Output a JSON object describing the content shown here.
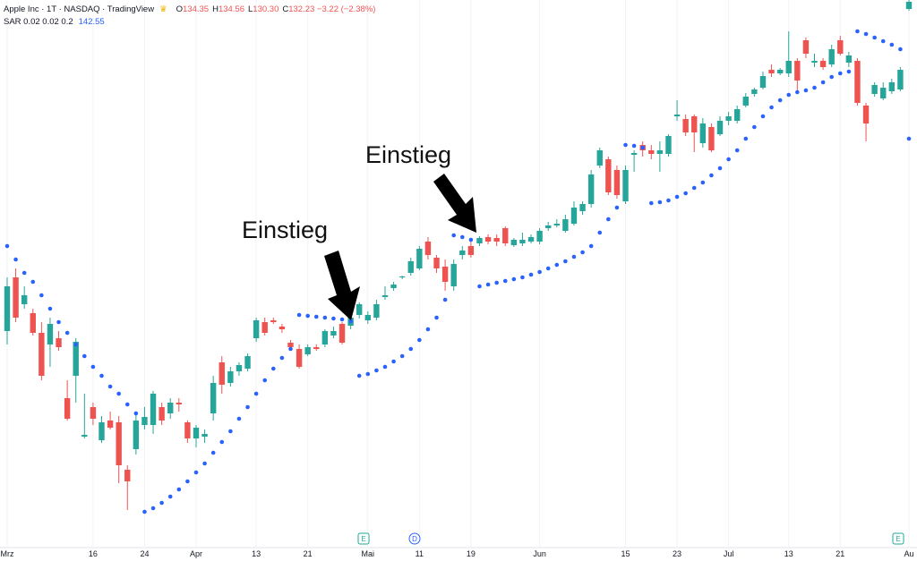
{
  "header": {
    "title": "Apple Inc · 1T · NASDAQ · TradingView",
    "ohlc": [
      {
        "key": "O",
        "value": "134.35"
      },
      {
        "key": "H",
        "value": "134.56"
      },
      {
        "key": "L",
        "value": "130.30"
      },
      {
        "key": "C",
        "value": "132.23"
      }
    ],
    "change": "−3.22 (−2.38%)",
    "indicator": "SAR 0.02 0.02 0.2",
    "indicator_value": "142.55"
  },
  "chart_data": {
    "type": "candlestick",
    "categories": [
      "Mrz",
      null,
      null,
      null,
      null,
      null,
      null,
      null,
      null,
      null,
      "16",
      null,
      null,
      null,
      null,
      null,
      "24",
      null,
      null,
      null,
      null,
      null,
      "Apr",
      null,
      null,
      null,
      null,
      null,
      null,
      "13",
      null,
      null,
      null,
      null,
      null,
      "21",
      null,
      null,
      null,
      null,
      null,
      null,
      "Mai",
      null,
      null,
      null,
      null,
      null,
      "11",
      null,
      null,
      null,
      null,
      null,
      "19",
      null,
      null,
      null,
      null,
      null,
      null,
      null,
      "Jun",
      null,
      null,
      null,
      null,
      null,
      null,
      null,
      null,
      null,
      "15",
      null,
      null,
      null,
      null,
      null,
      "23",
      null,
      null,
      null,
      null,
      null,
      "Jul",
      null,
      null,
      null,
      null,
      null,
      null,
      "13",
      null,
      null,
      null,
      null,
      null,
      "21",
      null,
      null,
      null,
      null,
      null,
      null,
      null,
      "Au"
    ],
    "open": [
      127.5,
      130.5,
      129,
      128.5,
      127.4,
      126.75,
      127.1,
      123.75,
      125,
      121.6,
      123.25,
      121.4,
      122.5,
      122.4,
      119.75,
      120.9,
      122.25,
      122.25,
      123.25,
      122.9,
      123.5,
      122.4,
      121.5,
      121.6,
      122.9,
      125.75,
      124.6,
      125.25,
      125.4,
      127.1,
      128,
      128.1,
      127.75,
      126.85,
      126.5,
      126.2,
      126.6,
      126.75,
      127.25,
      127.9,
      127.8,
      128.4,
      128.1,
      128.25,
      129.4,
      129.9,
      130.5,
      130.75,
      131,
      132.5,
      131.6,
      131.1,
      130,
      131.75,
      132.25,
      132.4,
      132.75,
      132.7,
      133.25,
      132.3,
      132.4,
      132.5,
      132.5,
      133.25,
      133.4,
      133.1,
      133.5,
      134.2,
      134.6,
      136.75,
      137.1,
      136.5,
      134.75,
      137.35,
      137.9,
      137.6,
      137.4,
      137.4,
      139.5,
      139.35,
      139.5,
      138,
      138.9,
      138.5,
      139.25,
      139.25,
      140.1,
      140.75,
      141.1,
      142.1,
      141.9,
      141.9,
      142.6,
      143.75,
      142.5,
      142.6,
      142.4,
      143.75,
      142.5,
      142.6,
      140.1,
      140.75,
      140.5,
      140.9,
      141,
      145.5
    ],
    "high": [
      130.5,
      131,
      130,
      128.75,
      128,
      128.25,
      127.5,
      124.75,
      127.1,
      124,
      123.5,
      122.75,
      123,
      122.75,
      120,
      123,
      123.25,
      124.15,
      123.5,
      123.75,
      123.75,
      122.5,
      122.25,
      122,
      125,
      126.1,
      125.5,
      125.75,
      126.25,
      128.25,
      128.25,
      128.25,
      127.9,
      127,
      126.75,
      126.75,
      126.75,
      127.6,
      127.75,
      128,
      128.4,
      129.1,
      128.6,
      129.25,
      130,
      130.25,
      130.6,
      131.6,
      132.25,
      132.75,
      131.75,
      131.5,
      131.5,
      132.25,
      132.5,
      132.8,
      132.9,
      132.9,
      133.35,
      132.7,
      133,
      132.9,
      133.25,
      133.6,
      133.75,
      134,
      134.75,
      134.75,
      136.5,
      137.75,
      137.25,
      136.75,
      136.75,
      137.6,
      138.1,
      137.9,
      138.1,
      138.5,
      140.4,
      139.6,
      139.6,
      139.4,
      139.1,
      139.5,
      139.75,
      140.1,
      140.8,
      141.1,
      142,
      142.4,
      142.2,
      144.25,
      142.75,
      143.9,
      143,
      142.75,
      143.5,
      144,
      143.1,
      142.75,
      140.25,
      141.4,
      141.4,
      141.6,
      142.25,
      146
    ],
    "low": [
      126.75,
      128,
      128.75,
      127.25,
      124.75,
      125.5,
      126.4,
      122.5,
      123.5,
      121.5,
      122.25,
      121.25,
      122,
      119,
      117.5,
      120.6,
      122,
      121.75,
      122.25,
      122.6,
      123,
      121.25,
      121,
      121.25,
      122.5,
      124,
      124.4,
      125,
      125.25,
      126.9,
      127.25,
      127.9,
      127.4,
      126.5,
      125.4,
      126.1,
      126.4,
      126.6,
      127.1,
      126.75,
      127.6,
      128.2,
      127.9,
      128.1,
      129.25,
      129.75,
      130.4,
      130.6,
      130.9,
      131.5,
      130.75,
      129.75,
      129.75,
      131.5,
      131.6,
      132.25,
      132.35,
      132.25,
      132.25,
      132.2,
      132.25,
      132.4,
      132.35,
      133.1,
      133.3,
      133,
      133.4,
      134,
      134.4,
      136.6,
      135.1,
      134.9,
      134.6,
      136.4,
      137.25,
      137.1,
      136.4,
      137.25,
      139.25,
      138.4,
      137.5,
      137.75,
      137.5,
      138.4,
      139,
      139.1,
      140,
      140.6,
      141,
      141.7,
      141.8,
      141.7,
      140.75,
      142.75,
      142.25,
      142.1,
      142.25,
      142.9,
      142.25,
      140.1,
      138.1,
      140.6,
      140.4,
      140.75,
      140.9,
      145.4
    ],
    "close": [
      130,
      128.25,
      129.5,
      127.4,
      125,
      127.9,
      126.6,
      122.6,
      126.9,
      121.7,
      122.6,
      122.4,
      122.1,
      120,
      119.1,
      122.5,
      122.7,
      124,
      122.5,
      123.5,
      123.4,
      121.5,
      122.1,
      121.75,
      124.6,
      124.5,
      125.25,
      125.6,
      126.1,
      128.1,
      127.4,
      128,
      127.6,
      126.6,
      125.5,
      126.6,
      126.5,
      127.5,
      127.5,
      126.85,
      128.25,
      129,
      128.4,
      129,
      129.5,
      130.1,
      130.55,
      131.4,
      132.1,
      131.75,
      131,
      130.25,
      131.25,
      132,
      131.75,
      132.7,
      132.5,
      132.5,
      132.4,
      132.6,
      132.6,
      132.75,
      133.1,
      133.4,
      133.5,
      133.75,
      134.4,
      134.6,
      136.25,
      137.6,
      135.25,
      135.1,
      136.5,
      137.45,
      137.6,
      137.4,
      137.6,
      138.4,
      139.6,
      138.6,
      138.6,
      139.1,
      137.6,
      139.25,
      139.5,
      139.9,
      140.6,
      141,
      141.75,
      141.9,
      142.1,
      142.6,
      141.5,
      143,
      142.6,
      142.25,
      143.25,
      143,
      142.9,
      140.25,
      139.1,
      141.25,
      141.1,
      141.4,
      142.1,
      145.9
    ],
    "up_color": "#26a69a",
    "down_color": "#ef5350",
    "sar": {
      "color": "#2962ff",
      "values": [
        132.25,
        131.5,
        130.75,
        130.25,
        129.5,
        128.75,
        128,
        127.4,
        126.75,
        126.1,
        125.5,
        125,
        124.4,
        124,
        123.4,
        122.9,
        117.4,
        117.6,
        117.9,
        118.25,
        118.65,
        119.1,
        119.6,
        120.1,
        120.7,
        121.3,
        121.9,
        122.6,
        123.25,
        124,
        124.75,
        125.4,
        126,
        126.5,
        128.4,
        128.35,
        128.3,
        128.25,
        128.2,
        128.15,
        128.05,
        125,
        125.1,
        125.3,
        125.5,
        125.8,
        126.1,
        126.5,
        127,
        127.6,
        128.25,
        129.25,
        132.85,
        132.75,
        132.6,
        130,
        130.1,
        130.2,
        130.3,
        130.4,
        130.5,
        130.65,
        130.8,
        131,
        131.2,
        131.4,
        131.65,
        131.9,
        132.25,
        133,
        133.75,
        134.4,
        137.9,
        137.85,
        137.75,
        134.65,
        134.7,
        134.8,
        135,
        135.2,
        135.5,
        135.8,
        136.2,
        136.6,
        137.1,
        137.6,
        138.25,
        138.9,
        139.5,
        140,
        140.4,
        140.7,
        140.85,
        140.95,
        141.1,
        141.4,
        141.7,
        141.9,
        142,
        144.25,
        144.1,
        143.9,
        143.7,
        143.5,
        143.25,
        138.25
      ]
    },
    "ylim": [
      115.5,
      146
    ],
    "annotations": [
      "Einstieg",
      "Einstieg"
    ],
    "events": [
      "E",
      "D",
      "E"
    ]
  }
}
